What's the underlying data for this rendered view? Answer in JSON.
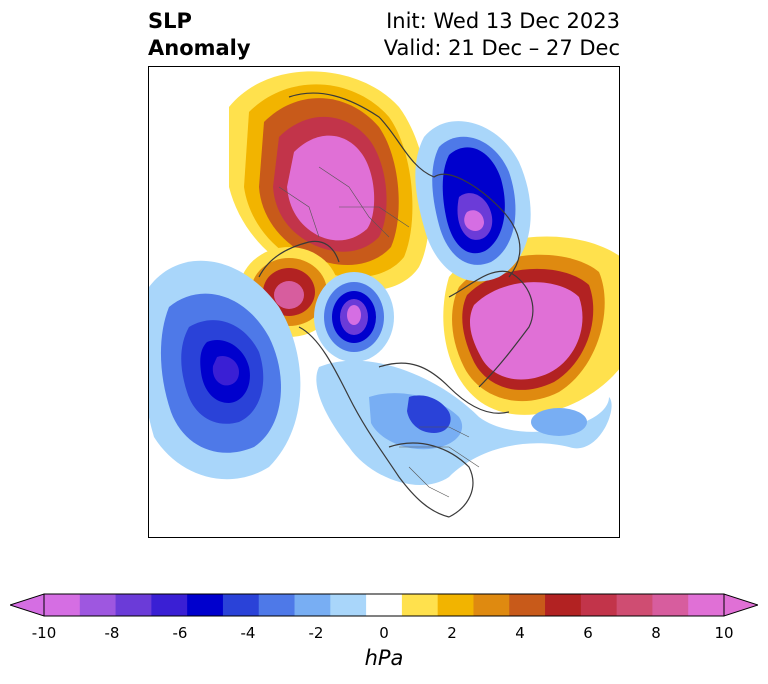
{
  "title": {
    "left_line1": "SLP",
    "left_line2": "Anomaly",
    "right_line1": "Init: Wed 13 Dec 2023",
    "right_line2": "Valid: 21 Dec – 27 Dec"
  },
  "map": {
    "projection": "polar-stereographic-north",
    "features": [
      {
        "name": "positive-anomaly-siberia-arctic",
        "value": 10
      },
      {
        "name": "positive-anomaly-north-atlantic",
        "value": 10
      },
      {
        "name": "positive-anomaly-east-siberia",
        "value": 8
      },
      {
        "name": "positive-anomaly-west-europe",
        "value": 4
      },
      {
        "name": "negative-anomaly-europe-russia",
        "value": -10
      },
      {
        "name": "negative-anomaly-north-pacific",
        "value": -7
      },
      {
        "name": "negative-anomaly-hudson-bay",
        "value": -9
      },
      {
        "name": "negative-anomaly-eastern-canada",
        "value": -5
      },
      {
        "name": "negative-anomaly-mid-atlantic",
        "value": -2
      }
    ]
  },
  "colorbar": {
    "levels": [
      -10,
      -9,
      -8,
      -7,
      -6,
      -5,
      -4,
      -3,
      -2,
      -1,
      1,
      2,
      3,
      4,
      5,
      6,
      7,
      8,
      9,
      10
    ],
    "colors": [
      "#d56ee3",
      "#9e57e0",
      "#6b3bd8",
      "#3a1fd4",
      "#0000cd",
      "#2a42d8",
      "#4e79e8",
      "#78aef3",
      "#a9d6fa",
      "#ffffff",
      "#ffe14d",
      "#f2b400",
      "#df8a10",
      "#c85a1a",
      "#b22222",
      "#c2344a",
      "#cf4d72",
      "#d75d9e",
      "#e070d6"
    ],
    "tick_labels": [
      "-10",
      "-8",
      "-6",
      "-4",
      "-2",
      "0",
      "2",
      "4",
      "6",
      "8",
      "10"
    ],
    "unit": "hPa"
  }
}
